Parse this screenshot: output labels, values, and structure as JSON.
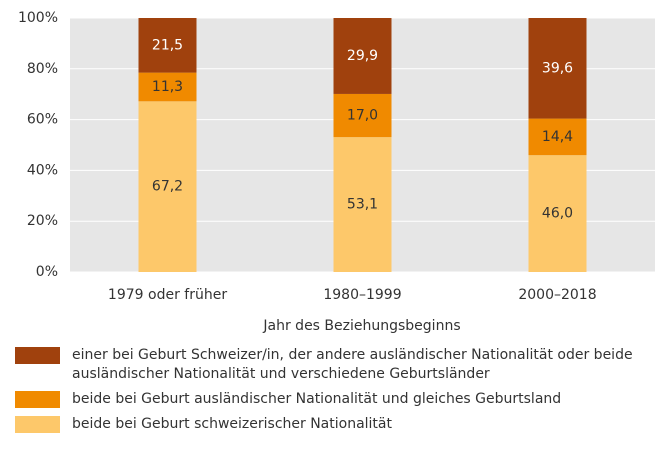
{
  "chart_data": {
    "type": "stacked_bar",
    "x_label": "Jahr des Beziehungsbeginns",
    "categories": [
      "1979 oder früher",
      "1980–1999",
      "2000–2018"
    ],
    "series": [
      {
        "name": "beide bei Geburt schweizerischer Nationalität",
        "color": "#fdc86a",
        "values": [
          67.2,
          53.1,
          46.0
        ],
        "value_labels": [
          "67,2",
          "53,1",
          "46,0"
        ]
      },
      {
        "name": "beide bei Geburt ausländischer Nationalität und gleiches Geburtsland",
        "color": "#f08a00",
        "values": [
          11.3,
          17.0,
          14.4
        ],
        "value_labels": [
          "11,3",
          "17,0",
          "14,4"
        ]
      },
      {
        "name": "einer bei Geburt Schweizer/in, der andere ausländischer Nationalität oder beide ausländischer Nationalität und verschiedene Geburtsländer",
        "color": "#a0410d",
        "values": [
          21.5,
          29.9,
          39.6
        ],
        "value_labels": [
          "21,5",
          "29,9",
          "39,6"
        ]
      }
    ],
    "ylim": [
      0,
      100
    ],
    "yticks": [
      {
        "value": 0,
        "label": "0%"
      },
      {
        "value": 20,
        "label": "20%"
      },
      {
        "value": 40,
        "label": "40%"
      },
      {
        "value": 60,
        "label": "60%"
      },
      {
        "value": 80,
        "label": "80%"
      },
      {
        "value": 100,
        "label": "100%"
      }
    ],
    "grid": true
  }
}
